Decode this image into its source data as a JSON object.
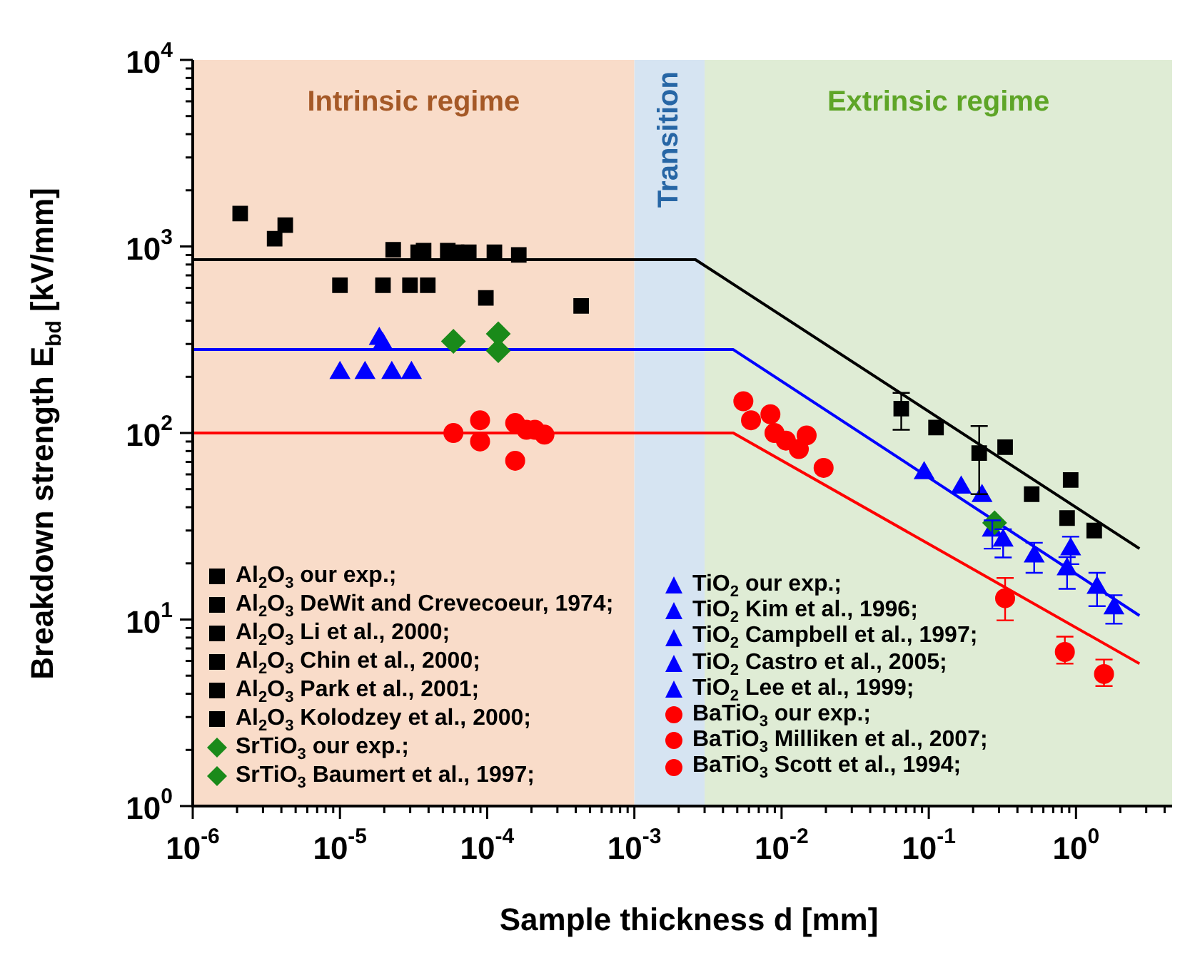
{
  "chart_data": {
    "type": "scatter",
    "xlabel": "Sample thickness d [mm]",
    "ylabel": "Breakdown strength E$_{bd}$ [kV/mm]",
    "log": "xy",
    "xlim": [
      1e-06,
      4.5
    ],
    "ylim": [
      1,
      10000
    ],
    "xticks": [
      {
        "value": 1e-06,
        "label": "10$^{-6}$"
      },
      {
        "value": 1e-05,
        "label": "10$^{-5}$"
      },
      {
        "value": 0.0001,
        "label": "10$^{-4}$"
      },
      {
        "value": 0.001,
        "label": "10$^{-3}$"
      },
      {
        "value": 0.01,
        "label": "10$^{-2}$"
      },
      {
        "value": 0.1,
        "label": "10$^{-1}$"
      },
      {
        "value": 1,
        "label": "10$^{0}$"
      }
    ],
    "yticks": [
      {
        "value": 1,
        "label": "10$^{0}$"
      },
      {
        "value": 10,
        "label": "10$^{1}$"
      },
      {
        "value": 100,
        "label": "10$^{2}$"
      },
      {
        "value": 1000,
        "label": "10$^{3}$"
      },
      {
        "value": 10000,
        "label": "10$^{4}$"
      }
    ],
    "legend": "bottom",
    "grid": false,
    "bands": [
      {
        "axis": "x",
        "from": 1e-06,
        "to": 0.001,
        "label": "Intrinsic regime",
        "color": "#f9dcc9"
      },
      {
        "axis": "x",
        "from": 0.001,
        "to": 0.003,
        "label": "Transition",
        "color": "#d6e4f2"
      },
      {
        "axis": "x",
        "from": 0.003,
        "to": 4.5,
        "label": "Extrinsic regime",
        "color": "#dfecd5"
      }
    ],
    "series": [
      {
        "name": "Al$_{2}$O$_{3}$ our exp.;",
        "color": "#000000",
        "marker": "square",
        "x": [
          0.065,
          0.112,
          0.22,
          0.33,
          0.5,
          0.92,
          0.87,
          1.33
        ],
        "values": [
          135,
          107,
          78,
          84,
          47,
          56,
          35,
          30
        ],
        "errors": [
          [
            104,
            164
          ],
          null,
          [
            47,
            109
          ],
          null,
          null,
          null,
          null,
          null
        ]
      },
      {
        "name": "Al$_{2}$O$_{3}$ DeWit and Crevecoeur, 1974;",
        "color": "#000000",
        "marker": "square",
        "x": [
          2.3e-05,
          3.4e-05,
          3.7e-05,
          5.4e-05,
          6.2e-05,
          7.5e-05,
          0.000112,
          0.000164
        ],
        "values": [
          960,
          930,
          950,
          950,
          930,
          930,
          930,
          900
        ]
      },
      {
        "name": "Al$_{2}$O$_{3}$ Li et al., 2000;",
        "color": "#000000",
        "marker": "square",
        "x": [
          1e-05,
          1.96e-05,
          2.99e-05,
          3.95e-05
        ],
        "values": [
          620,
          620,
          620,
          620
        ]
      },
      {
        "name": "Al$_{2}$O$_{3}$ Chin et al., 2000;",
        "color": "#000000",
        "marker": "square",
        "x": [
          2.1e-06
        ],
        "values": [
          1500
        ]
      },
      {
        "name": "Al$_{2}$O$_{3}$ Park et al., 2001;",
        "color": "#000000",
        "marker": "square",
        "x": [
          3.6e-06,
          4.25e-06
        ],
        "values": [
          1100,
          1300
        ]
      },
      {
        "name": "Al$_{2}$O$_{3}$ Kolodzey et al., 2000;",
        "color": "#000000",
        "marker": "square",
        "x": [
          9.8e-05,
          0.000435
        ],
        "values": [
          530,
          480
        ]
      },
      {
        "name": "SrTiO$_{3}$ our exp.;",
        "color": "#1a8a1a",
        "marker": "diamond",
        "x": [
          5.9e-05,
          0.000119,
          0.28
        ],
        "values": [
          310,
          340,
          33
        ]
      },
      {
        "name": "SrTiO$_{3}$ Baumert et al., 1997;",
        "color": "#1a8a1a",
        "marker": "diamond",
        "x": [
          0.000119
        ],
        "values": [
          276
        ]
      },
      {
        "name": "TiO$_{2}$ our exp.;",
        "color": "#0000ff",
        "marker": "triangle",
        "x": [
          0.27,
          0.32,
          0.52,
          0.92,
          0.87,
          1.39,
          1.81
        ],
        "values": [
          30,
          26.5,
          21.8,
          23.8,
          18.6,
          14.8,
          11.5
        ],
        "errors": [
          [
            24,
            34
          ],
          [
            21.5,
            30.5
          ],
          [
            17.8,
            25.8
          ],
          [
            19.8,
            27.8
          ],
          [
            14.6,
            21.6
          ],
          [
            11.8,
            17.8
          ],
          [
            9.5,
            13.5
          ]
        ]
      },
      {
        "name": "TiO$_{2}$ Kim et al., 1996;",
        "color": "#0000ff",
        "marker": "triangle",
        "x": [
          1.85e-05,
          0.093
        ],
        "values": [
          320,
          61
        ]
      },
      {
        "name": "TiO$_{2}$ Campbell et al., 1997;",
        "color": "#0000ff",
        "marker": "triangle",
        "x": [
          1.95e-05
        ],
        "values": [
          300
        ]
      },
      {
        "name": "TiO$_{2}$ Castro et al., 2005;",
        "color": "#0000ff",
        "marker": "triangle",
        "x": [
          0.166,
          0.23
        ],
        "values": [
          51,
          46
        ]
      },
      {
        "name": "TiO$_{2}$ Lee et al., 1999;",
        "color": "#0000ff",
        "marker": "triangle",
        "x": [
          1e-05,
          1.48e-05,
          2.25e-05,
          3.06e-05
        ],
        "values": [
          210,
          210,
          210,
          210
        ]
      },
      {
        "name": "BaTiO$_{3}$ our exp.;",
        "color": "#ff0000",
        "marker": "circle",
        "x": [
          0.33,
          0.84,
          1.55
        ],
        "values": [
          13,
          6.7,
          5.1
        ],
        "errors": [
          [
            9.9,
            16.7
          ],
          [
            5.8,
            8.1
          ],
          [
            4.4,
            6.1
          ]
        ]
      },
      {
        "name": "BaTiO$_{3}$ Milliken et al., 2007;",
        "color": "#ff0000",
        "marker": "circle",
        "x": [
          0.0055,
          0.0062,
          0.0084,
          0.00895,
          0.0107,
          0.0131,
          0.0148,
          0.0193
        ],
        "values": [
          148,
          117,
          126,
          100,
          91,
          82,
          97,
          65
        ]
      },
      {
        "name": "BaTiO$_{3}$ Scott et al., 1994;",
        "color": "#ff0000",
        "marker": "circle",
        "x": [
          5.9e-05,
          8.95e-05,
          8.95e-05,
          0.000155,
          0.000185,
          0.000211,
          0.000245,
          0.000155
        ],
        "values": [
          100,
          117,
          90,
          113,
          104,
          104,
          98,
          71
        ]
      },
      {
        "type": "line",
        "color": "#000000",
        "marker": "none",
        "x": [
          1e-06,
          0.0026,
          2.7
        ],
        "values": [
          850,
          850,
          24
        ]
      },
      {
        "type": "line",
        "color": "#0000ff",
        "marker": "none",
        "x": [
          1e-06,
          0.0047,
          2.7
        ],
        "values": [
          280,
          280,
          10.5
        ]
      },
      {
        "type": "line",
        "color": "#ff0000",
        "marker": "none",
        "x": [
          1e-06,
          0.0047,
          2.7
        ],
        "values": [
          100,
          100,
          5.8
        ]
      }
    ]
  }
}
